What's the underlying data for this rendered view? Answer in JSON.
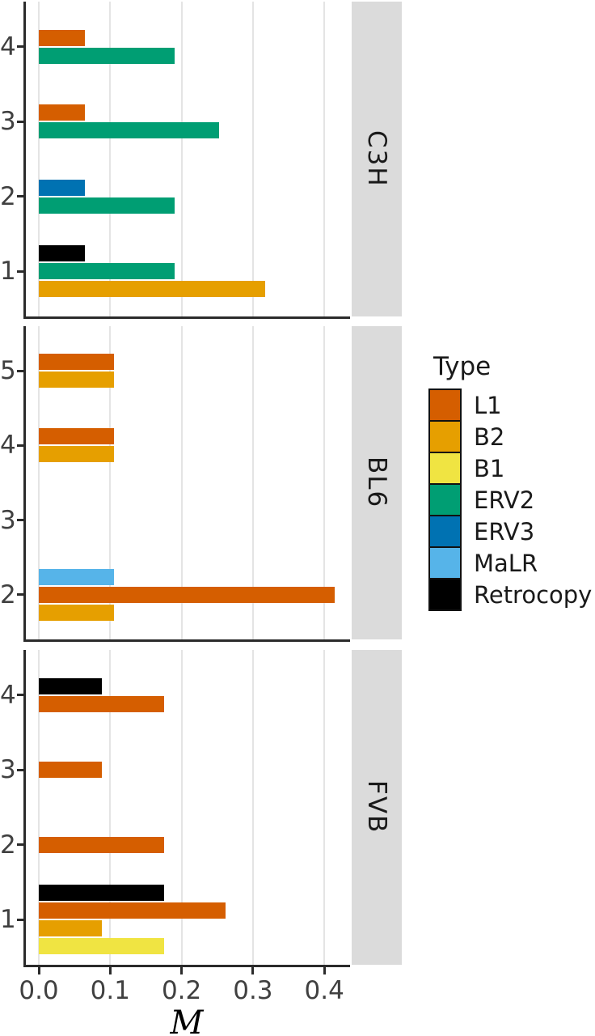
{
  "chart_data": {
    "type": "bar",
    "orientation": "horizontal",
    "title": "",
    "xlabel": "M",
    "ylabel": "",
    "xlim": [
      0,
      0.436
    ],
    "grid": true,
    "x_ticks": [
      "0.0",
      "0.1",
      "0.2",
      "0.3",
      "0.4"
    ],
    "x_tick_values": [
      0,
      0.1,
      0.2,
      0.3,
      0.4
    ],
    "legend": {
      "title": "Type",
      "position": "right",
      "entries": [
        {
          "label": "L1",
          "color": "#D55E00"
        },
        {
          "label": "B2",
          "color": "#E69F00"
        },
        {
          "label": "B1",
          "color": "#F0E442"
        },
        {
          "label": "ERV2",
          "color": "#009E73"
        },
        {
          "label": "ERV3",
          "color": "#0072B2"
        },
        {
          "label": "MaLR",
          "color": "#56B4E9"
        },
        {
          "label": "Retrocopy",
          "color": "#000000"
        }
      ]
    },
    "colors": {
      "L1": "#D55E00",
      "B2": "#E69F00",
      "B1": "#F0E442",
      "ERV2": "#009E73",
      "ERV3": "#0072B2",
      "MaLR": "#56B4E9",
      "Retrocopy": "#000000"
    },
    "style": {
      "axis_color": "#2b2b2b",
      "tick_text_color": "#404040",
      "grid_color": "#e4e4e4",
      "strip_bg": "#dbdbdb",
      "strip_text_color": "#1a1a1a",
      "panel_bg": "#ffffff"
    },
    "bar_order": "top-to-bottom",
    "facets": [
      {
        "label": "C3H",
        "categories": [
          "4",
          "3",
          "2",
          "1"
        ],
        "groups": [
          {
            "category": "4",
            "bars": [
              {
                "type": "L1",
                "value": 0.065
              },
              {
                "type": "ERV2",
                "value": 0.19
              }
            ]
          },
          {
            "category": "3",
            "bars": [
              {
                "type": "L1",
                "value": 0.065
              },
              {
                "type": "ERV2",
                "value": 0.253
              }
            ]
          },
          {
            "category": "2",
            "bars": [
              {
                "type": "ERV3",
                "value": 0.065
              },
              {
                "type": "ERV2",
                "value": 0.19
              }
            ]
          },
          {
            "category": "1",
            "bars": [
              {
                "type": "Retrocopy",
                "value": 0.065
              },
              {
                "type": "ERV2",
                "value": 0.19
              },
              {
                "type": "B2",
                "value": 0.317
              }
            ]
          }
        ]
      },
      {
        "label": "BL6",
        "categories": [
          "5",
          "4",
          "3",
          "2"
        ],
        "groups": [
          {
            "category": "5",
            "bars": [
              {
                "type": "L1",
                "value": 0.105
              },
              {
                "type": "B2",
                "value": 0.105
              }
            ]
          },
          {
            "category": "4",
            "bars": [
              {
                "type": "L1",
                "value": 0.105
              },
              {
                "type": "B2",
                "value": 0.105
              }
            ]
          },
          {
            "category": "3",
            "bars": []
          },
          {
            "category": "2",
            "bars": [
              {
                "type": "MaLR",
                "value": 0.105
              },
              {
                "type": "L1",
                "value": 0.415
              },
              {
                "type": "B2",
                "value": 0.105
              }
            ]
          }
        ]
      },
      {
        "label": "FVB",
        "categories": [
          "4",
          "3",
          "2",
          "1"
        ],
        "groups": [
          {
            "category": "4",
            "bars": [
              {
                "type": "Retrocopy",
                "value": 0.088
              },
              {
                "type": "L1",
                "value": 0.175
              }
            ]
          },
          {
            "category": "3",
            "bars": [
              {
                "type": "L1",
                "value": 0.088
              }
            ]
          },
          {
            "category": "2",
            "bars": [
              {
                "type": "L1",
                "value": 0.175
              }
            ]
          },
          {
            "category": "1",
            "bars": [
              {
                "type": "Retrocopy",
                "value": 0.175
              },
              {
                "type": "L1",
                "value": 0.262
              },
              {
                "type": "B2",
                "value": 0.088
              },
              {
                "type": "B1",
                "value": 0.175
              }
            ]
          }
        ]
      }
    ]
  }
}
